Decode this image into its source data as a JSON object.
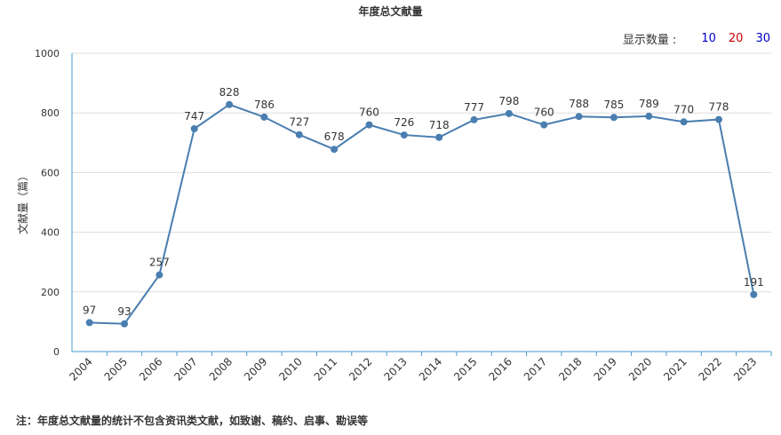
{
  "title": "年度总文献量",
  "display_count": {
    "label": "显示数量 :",
    "options": [
      {
        "value": "10",
        "color": "#0000cc"
      },
      {
        "value": "20",
        "color": "#cc0000"
      },
      {
        "value": "30",
        "color": "#0000cc"
      }
    ]
  },
  "note": "注：年度总文献量的统计不包含资讯类文献，如致谢、稿约、启事、勘误等",
  "colors": {
    "line": "#4a7eb0",
    "axis": "#4a98c9",
    "grid": "#dddddd"
  },
  "chart_data": {
    "type": "line",
    "title": "年度总文献量",
    "ylabel": "文献量（篇）",
    "xlabel": "",
    "ylim": [
      0,
      1000
    ],
    "yticks": [
      0,
      200,
      400,
      600,
      800,
      1000
    ],
    "grid": true,
    "categories": [
      "2004",
      "2005",
      "2006",
      "2007",
      "2008",
      "2009",
      "2010",
      "2011",
      "2012",
      "2013",
      "2014",
      "2015",
      "2016",
      "2017",
      "2018",
      "2019",
      "2020",
      "2021",
      "2022",
      "2023"
    ],
    "series": [
      {
        "values": [
          97,
          93,
          257,
          747,
          828,
          786,
          727,
          678,
          760,
          726,
          718,
          777,
          798,
          760,
          788,
          785,
          789,
          770,
          778,
          191
        ]
      }
    ]
  }
}
